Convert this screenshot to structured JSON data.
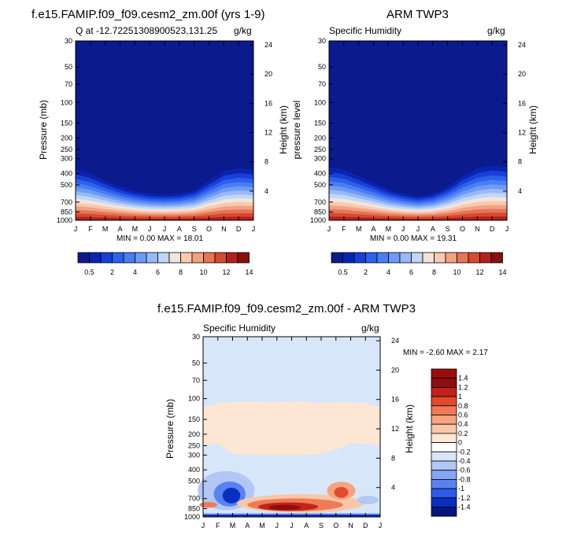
{
  "palette": {
    "seq": [
      "#0b1a8c",
      "#0a23b0",
      "#1840d8",
      "#2e60ea",
      "#4a7ef2",
      "#6e9af5",
      "#98b9f7",
      "#c2d6f7",
      "#f1e6dc",
      "#f9c9b0",
      "#f3a183",
      "#e67556",
      "#d44a32",
      "#b51f1c",
      "#86100f"
    ],
    "div": [
      "#04157e",
      "#0a2fbf",
      "#2f5ae8",
      "#5a82ef",
      "#86a6f3",
      "#b2c7f5",
      "#d8e6fa",
      "#ffffff",
      "#fde6d4",
      "#f9c7a8",
      "#f5a47f",
      "#ef7a55",
      "#e24a2e",
      "#c0231c",
      "#8c0e0f"
    ]
  },
  "panel_left": {
    "title": "f.e15.FAMIP.f09_f09.cesm2_zm.00f (yrs 1-9)",
    "left_string": "Q at -12.72251308900523,131.25",
    "right_string": "g/kg",
    "ylabel_left": "Pressure (mb)",
    "ylabel_right": "Height (km)",
    "min_max": "MIN =   0.00 MAX =  18.01"
  },
  "panel_right": {
    "title": "ARM TWP3",
    "left_string": "Specific Humidity",
    "right_string": "g/kg",
    "ylabel_left": "pressure level",
    "ylabel_right": "Height (km)",
    "min_max": "MIN =   0.00 MAX =  19.31"
  },
  "panel_diff": {
    "title": "f.e15.FAMIP.f09_f09.cesm2_zm.00f - ARM TWP3",
    "left_string": "Specific Humidity",
    "right_string": "g/kg",
    "ylabel_left": "Pressure (mb)",
    "ylabel_right": "Height (km)",
    "min_max": "MIN =  -2.60 MAX =   2.17"
  },
  "chart_data": [
    {
      "type": "heatmap",
      "title": "f.e15.FAMIP.f09_f09.cesm2_zm.00f (yrs 1-9)",
      "xlabel": "",
      "ylabel": "Pressure (mb)",
      "ylabel_right": "Height (km)",
      "x_ticks": [
        "J",
        "F",
        "M",
        "A",
        "M",
        "J",
        "J",
        "A",
        "S",
        "O",
        "N",
        "D",
        "J"
      ],
      "y_ticks": [
        "30",
        "50",
        "70",
        "100",
        "150",
        "200",
        "250",
        "300",
        "400",
        "500",
        "700",
        "850",
        "1000"
      ],
      "y_right_ticks": [
        "24",
        "20",
        "16",
        "12",
        "8",
        "4"
      ],
      "colorbar_labels": [
        "0.5",
        "2",
        "4",
        "6",
        "8",
        "10",
        "12",
        "14"
      ],
      "min": 0.0,
      "max": 18.01,
      "units": "g/kg",
      "top_of_moist_layer_mb": [
        330,
        360,
        420,
        480,
        530,
        560,
        570,
        560,
        520,
        420,
        340,
        320,
        330
      ]
    },
    {
      "type": "heatmap",
      "title": "ARM TWP3",
      "ylabel": "pressure level",
      "ylabel_right": "Height (km)",
      "x_ticks": [
        "J",
        "F",
        "M",
        "A",
        "M",
        "J",
        "J",
        "A",
        "S",
        "O",
        "N",
        "D",
        "J"
      ],
      "y_ticks": [
        "30",
        "50",
        "70",
        "100",
        "150",
        "200",
        "250",
        "300",
        "400",
        "500",
        "700",
        "850",
        "1000"
      ],
      "y_right_ticks": [
        "24",
        "20",
        "16",
        "12",
        "8",
        "4"
      ],
      "colorbar_labels": [
        "0.5",
        "2",
        "4",
        "6",
        "8",
        "10",
        "12",
        "14"
      ],
      "min": 0.0,
      "max": 19.31,
      "units": "g/kg",
      "top_of_moist_layer_mb": [
        310,
        330,
        380,
        440,
        510,
        560,
        590,
        560,
        480,
        380,
        320,
        300,
        310
      ]
    },
    {
      "type": "heatmap",
      "title": "f.e15.FAMIP.f09_f09.cesm2_zm.00f - ARM TWP3",
      "ylabel": "Pressure (mb)",
      "ylabel_right": "Height (km)",
      "x_ticks": [
        "J",
        "F",
        "M",
        "A",
        "M",
        "J",
        "J",
        "A",
        "S",
        "O",
        "N",
        "D",
        "J"
      ],
      "y_ticks": [
        "30",
        "50",
        "70",
        "100",
        "150",
        "200",
        "250",
        "300",
        "400",
        "500",
        "700",
        "850",
        "1000"
      ],
      "y_right_ticks": [
        "24",
        "20",
        "16",
        "12",
        "8",
        "4"
      ],
      "colorbar_labels": [
        "1.4",
        "1.2",
        "1",
        "0.8",
        "0.6",
        "0.4",
        "0.2",
        "0",
        "-0.2",
        "-0.4",
        "-0.6",
        "-0.8",
        "-1",
        "-1.2",
        "-1.4"
      ],
      "min": -2.6,
      "max": 2.17,
      "units": "g/kg"
    }
  ]
}
